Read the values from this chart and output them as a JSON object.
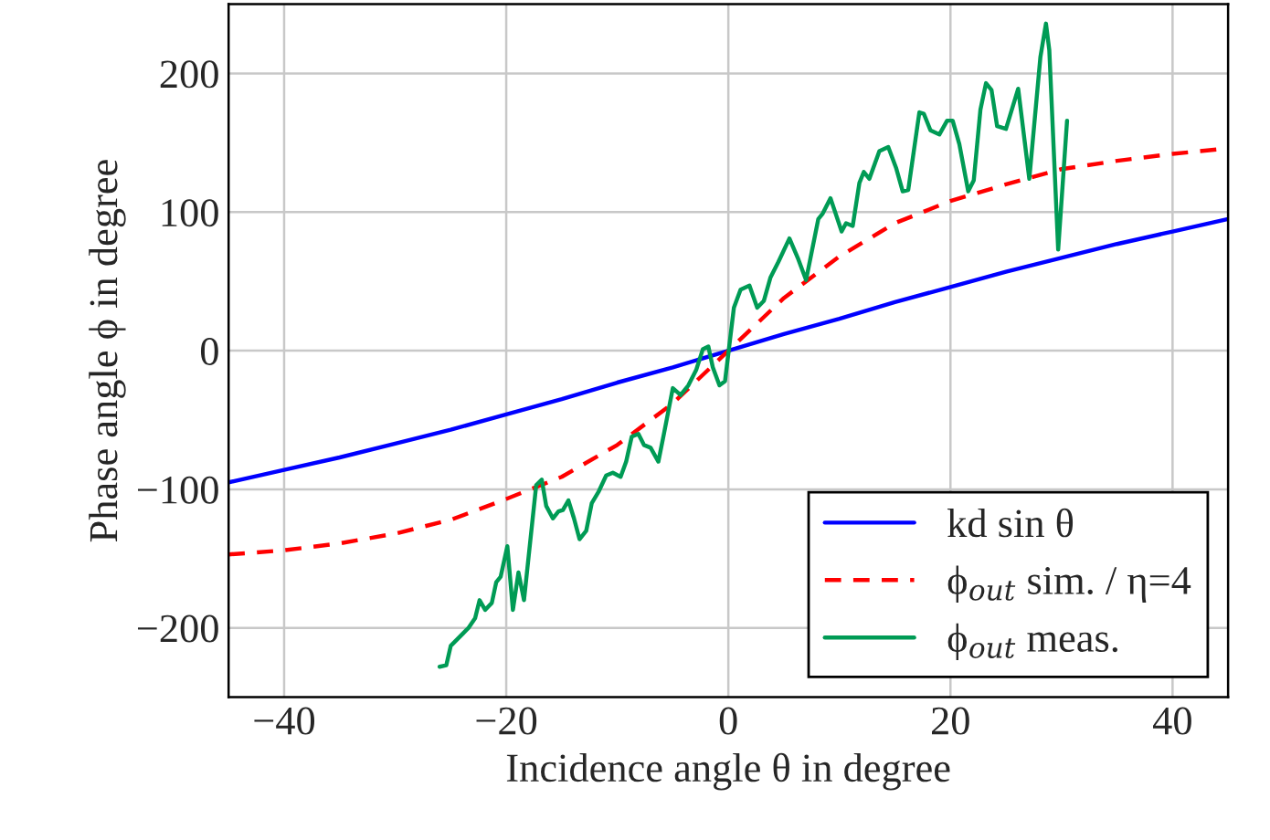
{
  "chart_data": {
    "type": "line",
    "xlabel": "Incidence angle θ in degree",
    "ylabel": "Phase angle ϕ in degree",
    "xlim": [
      -45,
      45
    ],
    "ylim": [
      -250,
      250
    ],
    "xticks": [
      {
        "value": -40,
        "label": "−40"
      },
      {
        "value": -20,
        "label": "−20"
      },
      0,
      20,
      40
    ],
    "yticks": [
      {
        "value": -200,
        "label": "−200"
      },
      {
        "value": -100,
        "label": "−100"
      },
      0,
      100,
      200
    ],
    "grid": true,
    "legend": "bottom right",
    "marker": "none",
    "series": [
      {
        "name": "kd sin θ",
        "color": "#0000ff",
        "line_style": "solid",
        "x": [
          -45,
          -40,
          -35,
          -30,
          -25,
          -20,
          -15,
          -10,
          -5,
          0,
          5,
          10,
          15,
          20,
          25,
          30,
          35,
          40,
          45
        ],
        "values": [
          -95,
          -86,
          -77,
          -67,
          -57,
          -46,
          -35,
          -23,
          -12,
          0,
          12,
          23,
          35,
          46,
          57,
          67,
          77,
          86,
          95
        ]
      },
      {
        "name": "ϕ$_{out}$ sim. / η=4",
        "color": "#ff0000",
        "line_style": "dashed",
        "x": [
          -45,
          -40,
          -35,
          -30,
          -25,
          -20,
          -15,
          -10,
          -5,
          0,
          5,
          10,
          15,
          20,
          25,
          30,
          35,
          40,
          45
        ],
        "values": [
          -147,
          -144,
          -139,
          -132,
          -122,
          -107,
          -91,
          -68,
          -38,
          0,
          38,
          68,
          92,
          108,
          120,
          131,
          137,
          142,
          146
        ]
      },
      {
        "name": "ϕ$_{out}$ meas.",
        "color": "#009b55",
        "line_style": "solid",
        "x": [
          -26.0,
          -25.4,
          -25.0,
          -24.5,
          -24.1,
          -23.4,
          -22.8,
          -22.4,
          -21.9,
          -21.3,
          -20.9,
          -20.5,
          -19.9,
          -19.4,
          -18.9,
          -18.4,
          -17.3,
          -16.8,
          -16.4,
          -15.8,
          -15.3,
          -14.9,
          -14.4,
          -13.9,
          -13.4,
          -12.8,
          -12.3,
          -11.7,
          -11.0,
          -10.4,
          -9.7,
          -9.2,
          -8.7,
          -8.1,
          -7.6,
          -7.0,
          -6.3,
          -5.8,
          -5.0,
          -4.3,
          -3.6,
          -2.9,
          -2.3,
          -1.8,
          -1.4,
          -0.8,
          -0.3,
          0.5,
          1.1,
          1.9,
          2.6,
          3.2,
          3.8,
          4.5,
          5.5,
          6.3,
          7.0,
          8.1,
          8.5,
          9.2,
          10.2,
          10.6,
          11.2,
          11.8,
          12.2,
          12.7,
          13.6,
          14.4,
          15.1,
          15.7,
          16.2,
          17.2,
          17.6,
          18.2,
          19.0,
          19.7,
          20.2,
          20.8,
          21.6,
          22.1,
          22.7,
          23.2,
          23.7,
          24.2,
          25.0,
          26.1,
          27.1,
          28.1,
          28.6,
          28.9,
          29.7,
          30.5
        ],
        "values": [
          -228,
          -227,
          -213,
          null,
          null,
          -200,
          -193,
          -180,
          -187,
          -182,
          -167,
          -163,
          -141,
          -187,
          -160,
          -180,
          -97,
          -93,
          -112,
          -121,
          -116,
          -115,
          -108,
          -121,
          -136,
          -130,
          -110,
          -102,
          -90,
          -88,
          -91,
          -80,
          -62,
          -60,
          -68,
          -70,
          -80,
          -60,
          -27,
          -32,
          -25,
          -14,
          1,
          3,
          -12,
          -25,
          -22,
          31,
          44,
          47,
          31,
          36,
          53,
          64,
          81,
          66,
          51,
          95,
          99,
          110,
          86,
          92,
          90,
          121,
          129,
          124,
          144,
          147,
          132,
          115,
          116,
          172,
          171,
          159,
          156,
          166,
          166,
          149,
          115,
          123,
          174,
          193,
          188,
          162,
          160,
          189,
          124,
          212,
          236,
          217,
          73,
          166
        ]
      }
    ]
  }
}
